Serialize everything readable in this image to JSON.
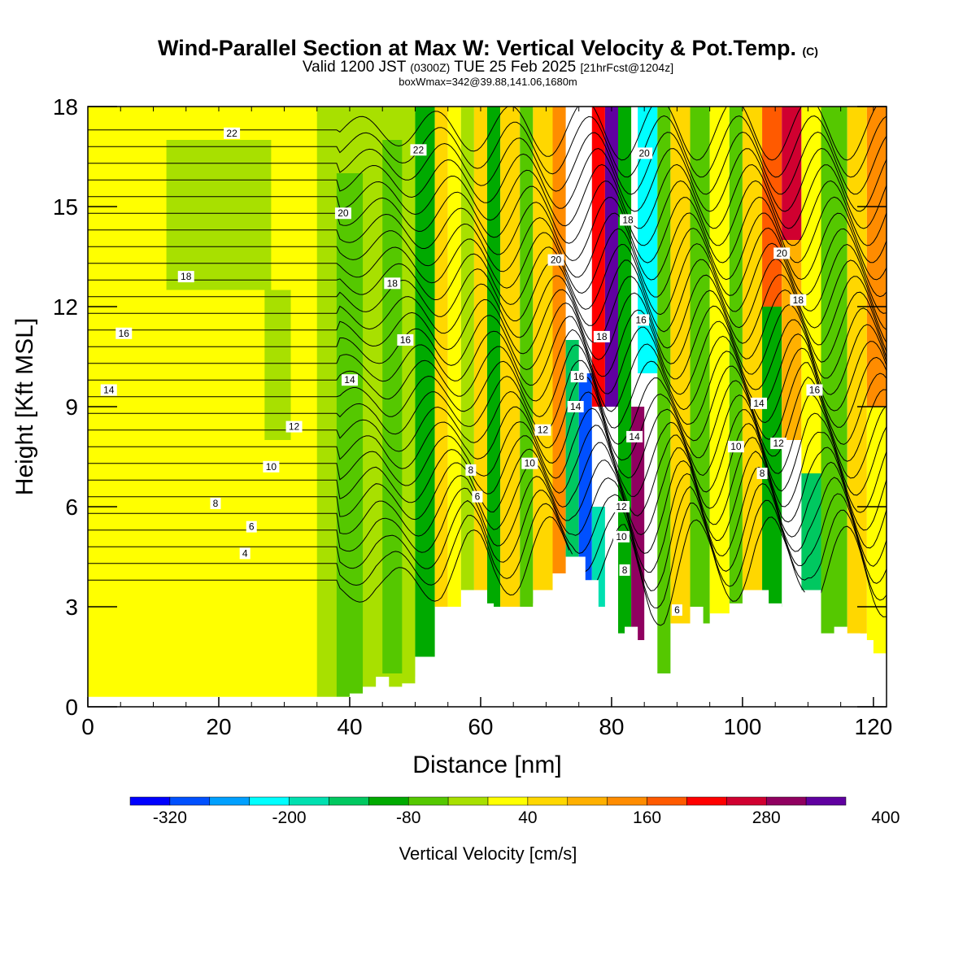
{
  "chart_data": {
    "type": "heatmap",
    "title": "Wind-Parallel Section at Max W: Vertical Velocity & Pot.Temp.",
    "title_mark": "(C)",
    "subtitle_parts": [
      "Valid 1200 JST",
      "(0300Z)",
      "TUE 25 Feb 2025",
      "[21hrFcst@1204z]"
    ],
    "info": "boxWmax=342@39.88,141.06,1680m",
    "xlabel": "Distance [nm]",
    "ylabel": "Height [Kft MSL]",
    "xlim": [
      0,
      122
    ],
    "ylim": [
      0,
      18
    ],
    "xticks": [
      "0",
      "20",
      "40",
      "60",
      "80",
      "100",
      "120"
    ],
    "yticks": [
      "0",
      "3",
      "6",
      "9",
      "12",
      "15",
      "18"
    ],
    "colorbar": {
      "label": "Vertical Velocity [cm/s]",
      "tick_labels": [
        "-320",
        "-200",
        "-80",
        "40",
        "160",
        "280",
        "400"
      ],
      "colors": [
        "#0000ff",
        "#0050ff",
        "#00a0ff",
        "#00ffff",
        "#00e0b0",
        "#00c860",
        "#00aa00",
        "#55c800",
        "#a8e000",
        "#ffff00",
        "#ffd700",
        "#ffb000",
        "#ff8c00",
        "#ff5a00",
        "#ff0000",
        "#d00030",
        "#900060",
        "#6000a0"
      ]
    },
    "terrain_kft": [
      [
        0,
        0.3
      ],
      [
        38,
        0.3
      ],
      [
        40,
        0.4
      ],
      [
        42,
        0.6
      ],
      [
        44,
        0.9
      ],
      [
        46,
        0.6
      ],
      [
        48,
        0.7
      ],
      [
        50,
        0.9
      ],
      [
        52,
        1.2
      ],
      [
        54,
        1.5
      ],
      [
        56,
        2.3
      ],
      [
        58,
        3.1
      ],
      [
        60,
        3.1
      ],
      [
        62,
        2.5
      ],
      [
        64,
        2.6
      ],
      [
        66,
        2.6
      ],
      [
        68,
        3.1
      ],
      [
        70,
        3.4
      ],
      [
        72,
        3.8
      ],
      [
        74,
        4.5
      ],
      [
        76,
        3.8
      ],
      [
        78,
        3.0
      ],
      [
        80,
        2.2
      ],
      [
        82,
        2.4
      ],
      [
        84,
        1.5
      ],
      [
        86,
        0.9
      ],
      [
        88,
        0.9
      ],
      [
        90,
        2.2
      ],
      [
        92,
        3.0
      ],
      [
        94,
        2.5
      ],
      [
        96,
        2.5
      ],
      [
        98,
        2.8
      ],
      [
        100,
        3.1
      ],
      [
        102,
        3.5
      ],
      [
        104,
        3.1
      ],
      [
        106,
        2.6
      ],
      [
        108,
        3.0
      ],
      [
        110,
        3.5
      ],
      [
        112,
        2.2
      ],
      [
        114,
        2.4
      ],
      [
        116,
        2.2
      ],
      [
        118,
        2.0
      ],
      [
        120,
        1.6
      ],
      [
        122,
        1.6
      ]
    ],
    "contour_labels": [
      {
        "text": "22",
        "x": 22,
        "y": 17.2
      },
      {
        "text": "22",
        "x": 50.5,
        "y": 16.7
      },
      {
        "text": "20",
        "x": 85,
        "y": 16.6
      },
      {
        "text": "20",
        "x": 39,
        "y": 14.8
      },
      {
        "text": "20",
        "x": 71.5,
        "y": 13.4
      },
      {
        "text": "20",
        "x": 106,
        "y": 13.6
      },
      {
        "text": "18",
        "x": 82.5,
        "y": 14.6
      },
      {
        "text": "18",
        "x": 15,
        "y": 12.9
      },
      {
        "text": "18",
        "x": 46.5,
        "y": 12.7
      },
      {
        "text": "18",
        "x": 78.5,
        "y": 11.1
      },
      {
        "text": "18",
        "x": 108.5,
        "y": 12.2
      },
      {
        "text": "16",
        "x": 5.5,
        "y": 11.2
      },
      {
        "text": "16",
        "x": 48.5,
        "y": 11.0
      },
      {
        "text": "16",
        "x": 84.5,
        "y": 11.6
      },
      {
        "text": "16",
        "x": 75,
        "y": 9.9
      },
      {
        "text": "16",
        "x": 111,
        "y": 9.5
      },
      {
        "text": "14",
        "x": 3.2,
        "y": 9.5
      },
      {
        "text": "14",
        "x": 40,
        "y": 9.8
      },
      {
        "text": "14",
        "x": 74.5,
        "y": 9.0
      },
      {
        "text": "14",
        "x": 83.5,
        "y": 8.1
      },
      {
        "text": "14",
        "x": 102.5,
        "y": 9.1
      },
      {
        "text": "12",
        "x": 31.5,
        "y": 8.4
      },
      {
        "text": "12",
        "x": 69.5,
        "y": 8.3
      },
      {
        "text": "12",
        "x": 81.5,
        "y": 6.0
      },
      {
        "text": "12",
        "x": 105.5,
        "y": 7.9
      },
      {
        "text": "10",
        "x": 28,
        "y": 7.2
      },
      {
        "text": "10",
        "x": 67.5,
        "y": 7.3
      },
      {
        "text": "10",
        "x": 81.5,
        "y": 5.1
      },
      {
        "text": "10",
        "x": 99,
        "y": 7.8
      },
      {
        "text": "8",
        "x": 58.5,
        "y": 7.1
      },
      {
        "text": "8",
        "x": 19.5,
        "y": 6.1
      },
      {
        "text": "8",
        "x": 82,
        "y": 4.1
      },
      {
        "text": "8",
        "x": 103,
        "y": 7.0
      },
      {
        "text": "6",
        "x": 59.5,
        "y": 6.3
      },
      {
        "text": "6",
        "x": 25,
        "y": 5.4
      },
      {
        "text": "6",
        "x": 90,
        "y": 2.9
      },
      {
        "text": "4",
        "x": 24,
        "y": 4.6
      }
    ],
    "w_cells": [
      {
        "x0": 0,
        "x1": 38,
        "y0": 0,
        "y1": 18,
        "w": 30
      },
      {
        "x0": 12,
        "x1": 28,
        "y0": 12.5,
        "y1": 17,
        "w": -30
      },
      {
        "x0": 27,
        "x1": 31,
        "y0": 8,
        "y1": 12.5,
        "w": -30
      },
      {
        "x0": 35,
        "x1": 50,
        "y0": 0,
        "y1": 18,
        "w": -30
      },
      {
        "x0": 38,
        "x1": 42,
        "y0": 0.3,
        "y1": 16,
        "w": -80
      },
      {
        "x0": 45,
        "x1": 48,
        "y0": 1,
        "y1": 17,
        "w": -55
      },
      {
        "x0": 50,
        "x1": 53,
        "y0": 1.5,
        "y1": 18,
        "w": -90
      },
      {
        "x0": 53,
        "x1": 55,
        "y0": 3,
        "y1": 18,
        "w": 70
      },
      {
        "x0": 55,
        "x1": 57,
        "y0": 3,
        "y1": 18,
        "w": 20
      },
      {
        "x0": 57,
        "x1": 59,
        "y0": 3.5,
        "y1": 18,
        "w": -40
      },
      {
        "x0": 59,
        "x1": 61,
        "y0": 3.5,
        "y1": 18,
        "w": 60
      },
      {
        "x0": 61,
        "x1": 63,
        "y0": 3,
        "y1": 18,
        "w": -90
      },
      {
        "x0": 63,
        "x1": 66,
        "y0": 3,
        "y1": 18,
        "w": 50
      },
      {
        "x0": 66,
        "x1": 68,
        "y0": 3,
        "y1": 18,
        "w": -70
      },
      {
        "x0": 68,
        "x1": 71,
        "y0": 3.5,
        "y1": 18,
        "w": 70
      },
      {
        "x0": 71,
        "x1": 73,
        "y0": 4,
        "y1": 18,
        "w": 130
      },
      {
        "x0": 73,
        "x1": 75,
        "y0": 4.5,
        "y1": 11,
        "w": -150
      },
      {
        "x0": 75,
        "x1": 77,
        "y0": 3,
        "y1": 10,
        "w": -290
      },
      {
        "x0": 77,
        "x1": 79,
        "y0": 2.2,
        "y1": 6,
        "w": -200
      },
      {
        "x0": 77,
        "x1": 79,
        "y0": 9,
        "y1": 18,
        "w": 200
      },
      {
        "x0": 79,
        "x1": 81,
        "y0": 9,
        "y1": 18,
        "w": 320
      },
      {
        "x0": 81,
        "x1": 83,
        "y0": 2.2,
        "y1": 18,
        "w": -110
      },
      {
        "x0": 83,
        "x1": 85,
        "y0": 2,
        "y1": 9,
        "w": 300
      },
      {
        "x0": 84,
        "x1": 87,
        "y0": 10,
        "y1": 18,
        "w": -210
      },
      {
        "x0": 87,
        "x1": 89,
        "y0": 1,
        "y1": 18,
        "w": -50
      },
      {
        "x0": 89,
        "x1": 92,
        "y0": 2.5,
        "y1": 18,
        "w": 70
      },
      {
        "x0": 92,
        "x1": 95,
        "y0": 2.5,
        "y1": 18,
        "w": -60
      },
      {
        "x0": 95,
        "x1": 98,
        "y0": 2.8,
        "y1": 18,
        "w": 30
      },
      {
        "x0": 98,
        "x1": 100,
        "y0": 3.1,
        "y1": 18,
        "w": -50
      },
      {
        "x0": 100,
        "x1": 103,
        "y0": 3.5,
        "y1": 18,
        "w": 60
      },
      {
        "x0": 103,
        "x1": 106,
        "y0": 3,
        "y1": 12,
        "w": -100
      },
      {
        "x0": 103,
        "x1": 106,
        "y0": 12,
        "y1": 18,
        "w": 170
      },
      {
        "x0": 106,
        "x1": 109,
        "y0": 14,
        "y1": 18,
        "w": 240
      },
      {
        "x0": 106,
        "x1": 109,
        "y0": 8,
        "y1": 14,
        "w": 90
      },
      {
        "x0": 109,
        "x1": 112,
        "y0": 3.5,
        "y1": 7,
        "w": -150
      },
      {
        "x0": 109,
        "x1": 112,
        "y0": 7,
        "y1": 18,
        "w": 30
      },
      {
        "x0": 112,
        "x1": 116,
        "y0": 2.2,
        "y1": 18,
        "w": -60
      },
      {
        "x0": 116,
        "x1": 119,
        "y0": 2.2,
        "y1": 18,
        "w": 60
      },
      {
        "x0": 119,
        "x1": 122,
        "y0": 9,
        "y1": 18,
        "w": 130
      },
      {
        "x0": 119,
        "x1": 122,
        "y0": 1.6,
        "y1": 9,
        "w": 10
      }
    ]
  }
}
